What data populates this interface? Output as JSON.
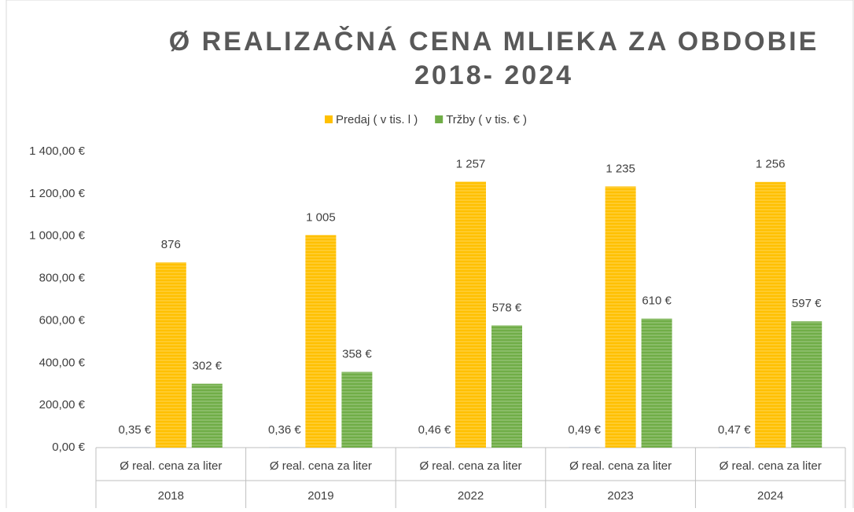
{
  "chart_data": {
    "type": "bar",
    "title": "Ø REALIZAČNÁ CENA MLIEKA ZA OBDOBIE",
    "subtitle": "2018- 2024",
    "categories": [
      "2018",
      "2019",
      "2022",
      "2023",
      "2024"
    ],
    "subcategories": [
      "Ø real. cena za liter",
      "Ø real. cena za liter",
      "Ø real. cena za liter",
      "Ø real. cena za liter",
      "Ø real. cena za liter"
    ],
    "series": [
      {
        "color": "#4472c4",
        "values": [
          0.35,
          0.36,
          0.46,
          0.49,
          0.47
        ],
        "value_labels": [
          "0,35 €",
          "0,36 €",
          "0,46 €",
          "0,49 €",
          "0,47 €"
        ]
      },
      {
        "name": "Predaj ( v tis. l )",
        "color": "#ffc000",
        "values": [
          876,
          1005,
          1257,
          1235,
          1256
        ],
        "value_labels": [
          "876",
          "1 005",
          "1 257",
          "1 235",
          "1 256"
        ]
      },
      {
        "name": "Tržby ( v tis. € )",
        "color": "#70ad47",
        "values": [
          302,
          358,
          578,
          610,
          597
        ],
        "value_labels": [
          "302 €",
          "358 €",
          "578 €",
          "610 €",
          "597 €"
        ]
      }
    ],
    "ylim": [
      0,
      1400
    ],
    "yticks": [
      {
        "value": 0,
        "label": "0,00 €"
      },
      {
        "value": 200,
        "label": "200,00 €"
      },
      {
        "value": 400,
        "label": "400,00 €"
      },
      {
        "value": 600,
        "label": "600,00 €"
      },
      {
        "value": 800,
        "label": "800,00 €"
      },
      {
        "value": 1000,
        "label": "1 000,00 €"
      },
      {
        "value": 1200,
        "label": "1 200,00 €"
      },
      {
        "value": 1400,
        "label": "1 400,00 €"
      }
    ],
    "legend": "top"
  }
}
